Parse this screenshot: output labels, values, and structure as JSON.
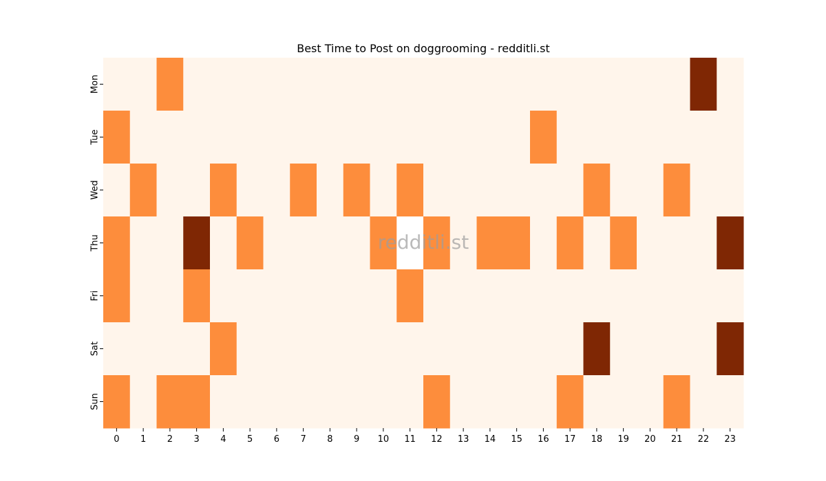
{
  "chart_data": {
    "type": "heatmap",
    "title": "Best Time to Post on doggrooming - redditli.st",
    "watermark": "redditli.st",
    "xlabel": "",
    "ylabel": "",
    "x_categories": [
      "0",
      "1",
      "2",
      "3",
      "4",
      "5",
      "6",
      "7",
      "8",
      "9",
      "10",
      "11",
      "12",
      "13",
      "14",
      "15",
      "16",
      "17",
      "18",
      "19",
      "20",
      "21",
      "22",
      "23"
    ],
    "y_categories": [
      "Mon",
      "Tue",
      "Wed",
      "Thu",
      "Fri",
      "Sat",
      "Sun"
    ],
    "values": [
      [
        0,
        0,
        1,
        0,
        0,
        0,
        0,
        0,
        0,
        0,
        0,
        0,
        0,
        0,
        0,
        0,
        0,
        0,
        0,
        0,
        0,
        0,
        2,
        0
      ],
      [
        1,
        0,
        0,
        0,
        0,
        0,
        0,
        0,
        0,
        0,
        0,
        0,
        0,
        0,
        0,
        0,
        1,
        0,
        0,
        0,
        0,
        0,
        0,
        0
      ],
      [
        0,
        1,
        0,
        0,
        1,
        0,
        0,
        1,
        0,
        1,
        0,
        1,
        0,
        0,
        0,
        0,
        0,
        0,
        1,
        0,
        0,
        1,
        0,
        0
      ],
      [
        1,
        0,
        0,
        2,
        0,
        1,
        0,
        0,
        0,
        0,
        1,
        0,
        1,
        0,
        1,
        1,
        0,
        1,
        0,
        1,
        0,
        0,
        0,
        2
      ],
      [
        1,
        0,
        0,
        1,
        0,
        0,
        0,
        0,
        0,
        0,
        0,
        1,
        0,
        0,
        0,
        0,
        0,
        0,
        0,
        0,
        0,
        0,
        0,
        0
      ],
      [
        0,
        0,
        0,
        0,
        1,
        0,
        0,
        0,
        0,
        0,
        0,
        0,
        0,
        0,
        0,
        0,
        0,
        0,
        2,
        0,
        0,
        0,
        0,
        2
      ],
      [
        1,
        0,
        1,
        1,
        0,
        0,
        0,
        0,
        0,
        0,
        0,
        0,
        1,
        0,
        0,
        0,
        0,
        1,
        0,
        0,
        0,
        1,
        0,
        0
      ]
    ],
    "highlight_cell": {
      "row": 3,
      "col": 11,
      "color": "#ffffff"
    },
    "colormap": {
      "0": "#fff5eb",
      "1": "#fd8d3c",
      "2": "#7f2704"
    },
    "grid": false,
    "legend": "none"
  }
}
